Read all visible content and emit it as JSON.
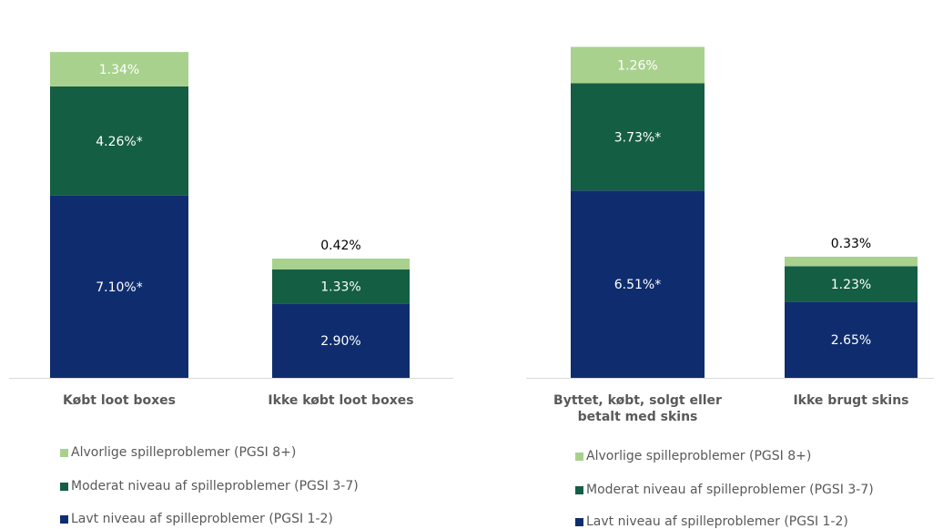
{
  "chart_data": [
    {
      "type": "bar",
      "stacked": true,
      "categories": [
        "Købt loot boxes",
        "Ikke købt loot boxes"
      ],
      "series": [
        {
          "name": "Lavt niveau af spilleproblemer (PGSI 1-2)",
          "color": "#0f2d6e",
          "values": [
            7.1,
            2.9
          ],
          "labels": [
            "7.10%*",
            "2.90%"
          ]
        },
        {
          "name": "Moderat niveau af spilleproblemer (PGSI 3-7)",
          "color": "#145e44",
          "values": [
            4.26,
            1.33
          ],
          "labels": [
            "4.26%*",
            "1.33%"
          ]
        },
        {
          "name": "Alvorlige spilleproblemer (PGSI 8+)",
          "color": "#a9d18e",
          "values": [
            1.34,
            0.42
          ],
          "labels": [
            "1.34%",
            "0.42%"
          ]
        }
      ],
      "legend_position": "bottom"
    },
    {
      "type": "bar",
      "stacked": true,
      "categories": [
        "Byttet, købt, solgt eller betalt med skins",
        "Ikke brugt skins"
      ],
      "series": [
        {
          "name": "Lavt niveau af spilleproblemer (PGSI 1-2)",
          "color": "#0f2d6e",
          "values": [
            6.51,
            2.65
          ],
          "labels": [
            "6.51%*",
            "2.65%"
          ]
        },
        {
          "name": "Moderat niveau af spilleproblemer (PGSI 3-7)",
          "color": "#145e44",
          "values": [
            3.73,
            1.23
          ],
          "labels": [
            "3.73%*",
            "1.23%"
          ]
        },
        {
          "name": "Alvorlige spilleproblemer (PGSI 8+)",
          "color": "#a9d18e",
          "values": [
            1.26,
            0.33
          ],
          "labels": [
            "1.26%",
            "0.33%"
          ]
        }
      ],
      "legend_position": "bottom"
    }
  ]
}
